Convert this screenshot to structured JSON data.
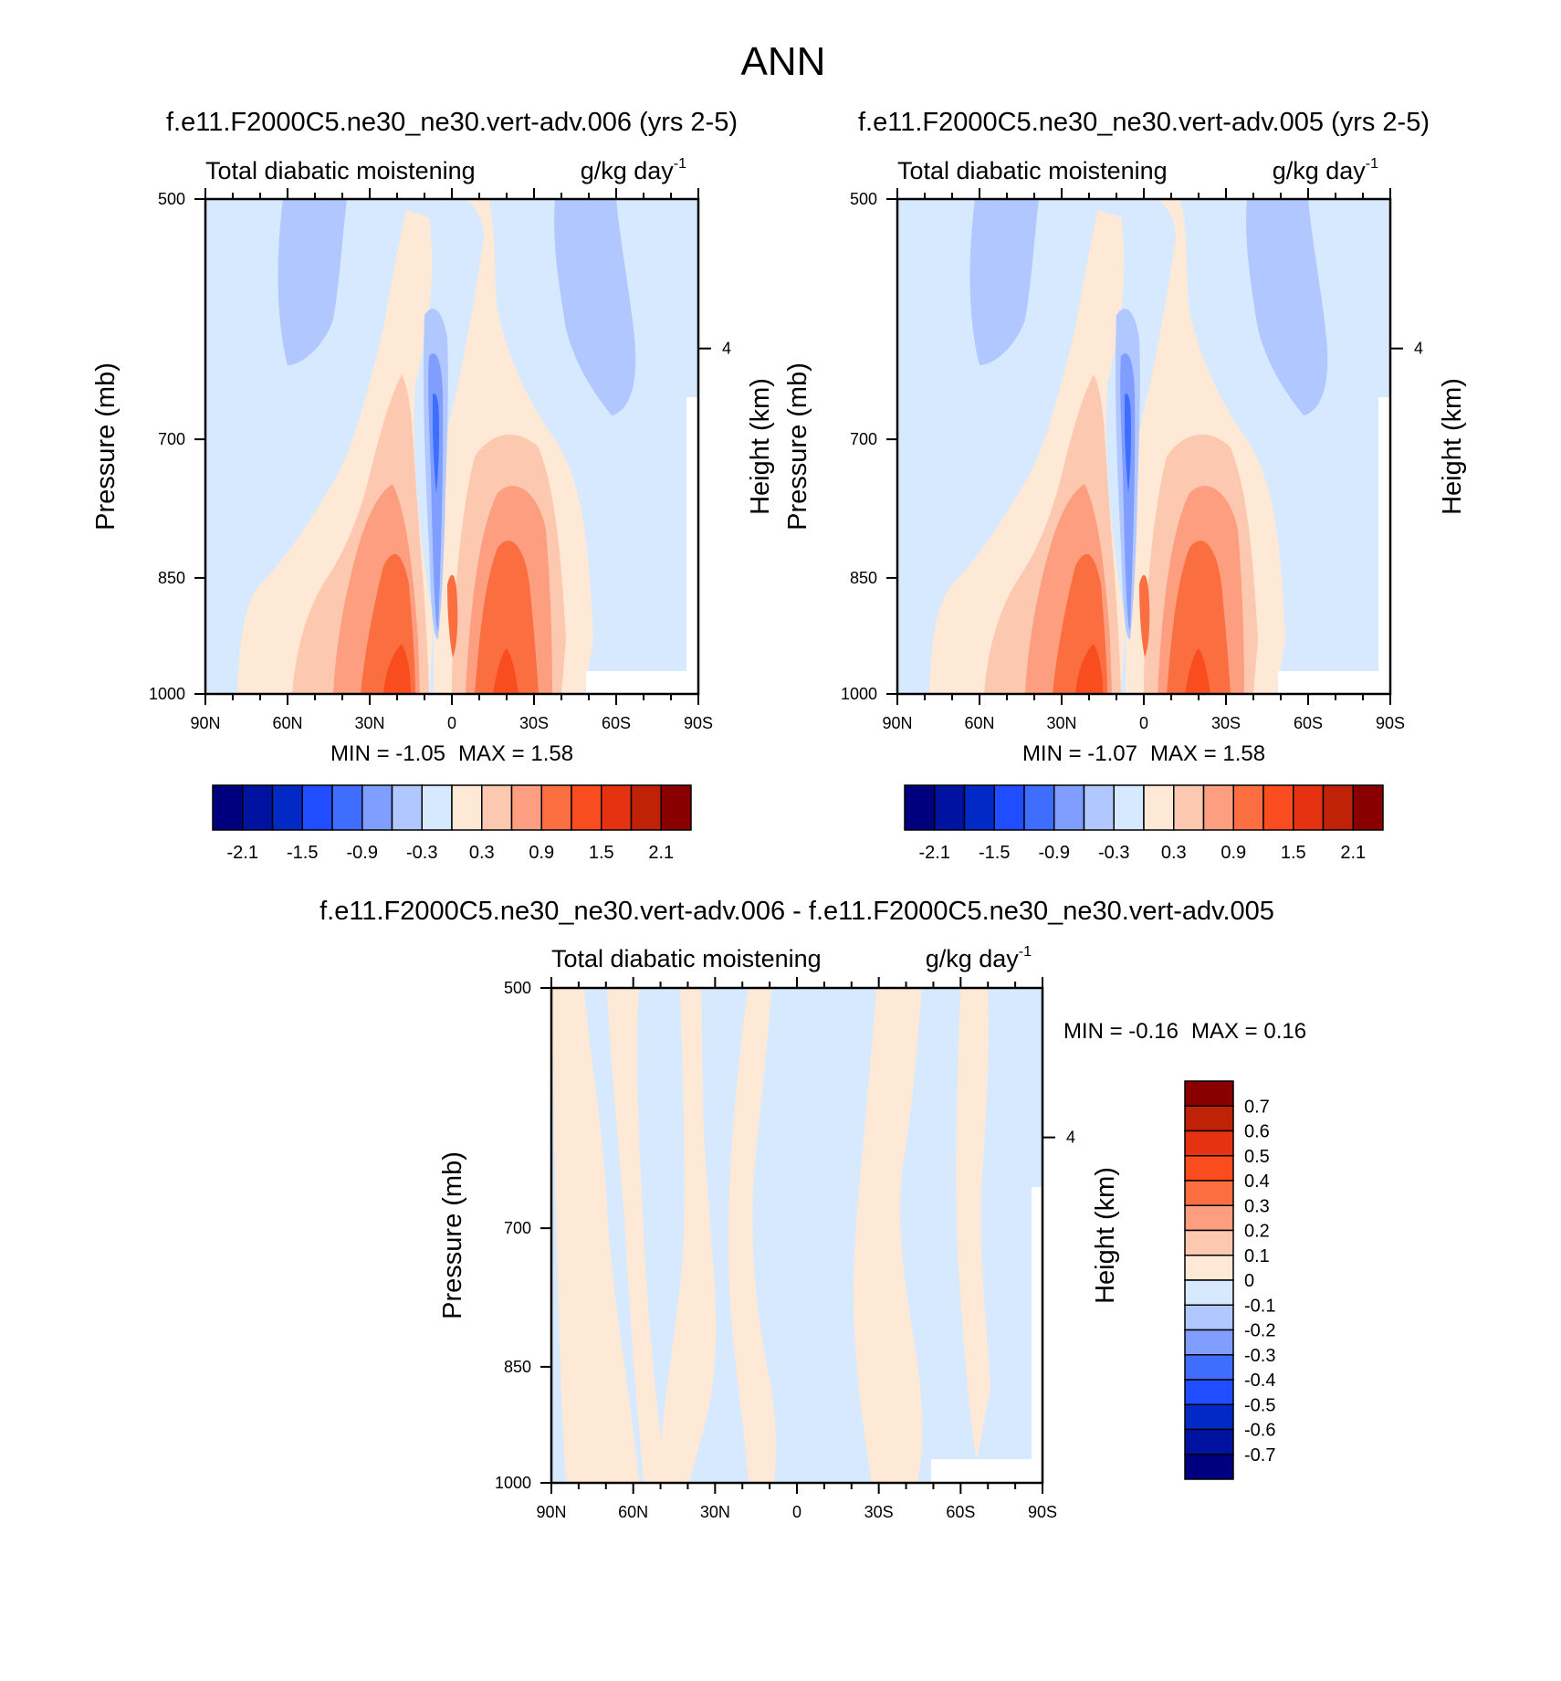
{
  "title": "ANN",
  "colors": {
    "blue_red_17": [
      "#00007f",
      "#0013a0",
      "#0029c5",
      "#1f4dff",
      "#3f6eff",
      "#7f9eff",
      "#b0c8ff",
      "#d7e9ff",
      "#fee9d6",
      "#fdc8b0",
      "#fc9e7f",
      "#fb6e3f",
      "#f94d1f",
      "#e53311",
      "#c02208",
      "#8a0000"
    ],
    "diff_17": [
      "#00007f",
      "#0013a0",
      "#0029c5",
      "#1f4dff",
      "#3f6eff",
      "#7f9eff",
      "#b0c8ff",
      "#d7e9ff",
      "#fee9d6",
      "#fdc8b0",
      "#fc9e7f",
      "#fb6e3f",
      "#f94d1f",
      "#e53311",
      "#c02208",
      "#8a0000"
    ]
  },
  "chart_data": [
    {
      "type": "heatmap",
      "panel_title": "f.e11.F2000C5.ne30_ne30.vert-adv.006 (yrs 2-5)",
      "subtitle_left": "Total diabatic moistening",
      "subtitle_right": "g/kg day",
      "subtitle_right_exp": "-1",
      "ylabel": "Pressure (mb)",
      "ylabel_right": "Height (km)",
      "x_ticks": [
        "90N",
        "60N",
        "30N",
        "0",
        "30S",
        "60S",
        "90S"
      ],
      "y_ticks": [
        "500",
        "700",
        "850",
        "1000"
      ],
      "y_ticks_right": [
        "4"
      ],
      "min_label": "MIN =  -1.05",
      "max_label": "MAX =   1.58",
      "min": -1.05,
      "max": 1.58,
      "colorbar_labels": [
        "-2.1",
        "-1.5",
        "-0.9",
        "-0.3",
        "0.3",
        "0.9",
        "1.5",
        "2.1"
      ]
    },
    {
      "type": "heatmap",
      "panel_title": "f.e11.F2000C5.ne30_ne30.vert-adv.005 (yrs 2-5)",
      "subtitle_left": "Total diabatic moistening",
      "subtitle_right": "g/kg day",
      "subtitle_right_exp": "-1",
      "ylabel": "Pressure (mb)",
      "ylabel_right": "Height (km)",
      "x_ticks": [
        "90N",
        "60N",
        "30N",
        "0",
        "30S",
        "60S",
        "90S"
      ],
      "y_ticks": [
        "500",
        "700",
        "850",
        "1000"
      ],
      "y_ticks_right": [
        "4"
      ],
      "min_label": "MIN =  -1.07",
      "max_label": "MAX =   1.58",
      "min": -1.07,
      "max": 1.58,
      "colorbar_labels": [
        "-2.1",
        "-1.5",
        "-0.9",
        "-0.3",
        "0.3",
        "0.9",
        "1.5",
        "2.1"
      ]
    },
    {
      "type": "heatmap",
      "panel_title": "f.e11.F2000C5.ne30_ne30.vert-adv.006 - f.e11.F2000C5.ne30_ne30.vert-adv.005",
      "subtitle_left": "Total diabatic moistening",
      "subtitle_right": "g/kg day",
      "subtitle_right_exp": "-1",
      "ylabel": "Pressure (mb)",
      "ylabel_right": "Height (km)",
      "x_ticks": [
        "90N",
        "60N",
        "30N",
        "0",
        "30S",
        "60S",
        "90S"
      ],
      "y_ticks": [
        "500",
        "700",
        "850",
        "1000"
      ],
      "y_ticks_right": [
        "4"
      ],
      "min_label": "MIN =  -0.16",
      "max_label": "MAX =   0.16",
      "min": -0.16,
      "max": 0.16,
      "colorbar_labels": [
        "0.7",
        "0.6",
        "0.5",
        "0.4",
        "0.3",
        "0.2",
        "0.1",
        "0",
        "-0.1",
        "-0.2",
        "-0.3",
        "-0.4",
        "-0.5",
        "-0.6",
        "-0.7"
      ]
    }
  ]
}
